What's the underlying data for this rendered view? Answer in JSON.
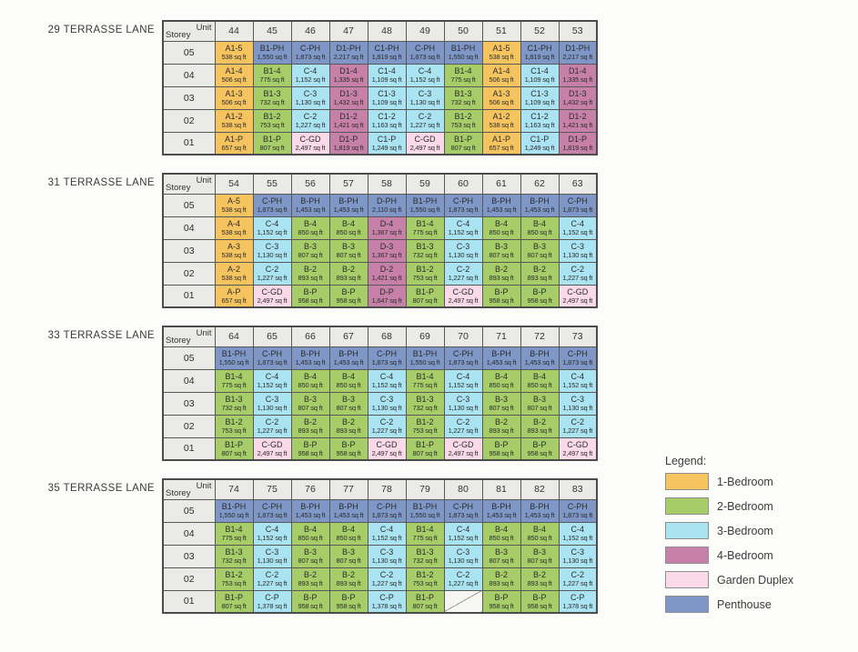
{
  "header_cell": {
    "unit_label": "Unit",
    "storey_label": "Storey"
  },
  "storeys": [
    "05",
    "04",
    "03",
    "02",
    "01"
  ],
  "colors": {
    "1br": "#F5C45F",
    "2br": "#A6CD68",
    "3br": "#AAE4F2",
    "4br": "#C780A7",
    "gd": "#FAD9E8",
    "ph": "#7E97C6",
    "header_bg": "#EAEAE7",
    "border": "#4C4C4C",
    "page_bg": "#FCFCFA"
  },
  "legend": {
    "title": "Legend:",
    "items": [
      {
        "label": "1-Bedroom",
        "key": "1br"
      },
      {
        "label": "2-Bedroom",
        "key": "2br"
      },
      {
        "label": "3-Bedroom",
        "key": "3br"
      },
      {
        "label": "4-Bedroom",
        "key": "4br"
      },
      {
        "label": "Garden Duplex",
        "key": "gd"
      },
      {
        "label": "Penthouse",
        "key": "ph"
      }
    ]
  },
  "buildings": [
    {
      "name": "29 TERRASSE LANE",
      "units": [
        "44",
        "45",
        "46",
        "47",
        "48",
        "49",
        "50",
        "51",
        "52",
        "53"
      ],
      "rows": [
        [
          [
            "A1-5",
            "538 sq ft"
          ],
          [
            "B1-PH",
            "1,550 sq ft"
          ],
          [
            "C-PH",
            "1,873 sq ft"
          ],
          [
            "D1-PH",
            "2,217 sq ft"
          ],
          [
            "C1-PH",
            "1,819 sq ft"
          ],
          [
            "C-PH",
            "1,873 sq ft"
          ],
          [
            "B1-PH",
            "1,550 sq ft"
          ],
          [
            "A1-5",
            "538 sq ft"
          ],
          [
            "C1-PH",
            "1,819 sq ft"
          ],
          [
            "D1-PH",
            "2,217 sq ft"
          ]
        ],
        [
          [
            "A1-4",
            "506 sq ft"
          ],
          [
            "B1-4",
            "775 sq ft"
          ],
          [
            "C-4",
            "1,152 sq ft"
          ],
          [
            "D1-4",
            "1,335 sq ft"
          ],
          [
            "C1-4",
            "1,109 sq ft"
          ],
          [
            "C-4",
            "1,152 sq ft"
          ],
          [
            "B1-4",
            "775 sq ft"
          ],
          [
            "A1-4",
            "506 sq ft"
          ],
          [
            "C1-4",
            "1,109 sq ft"
          ],
          [
            "D1-4",
            "1,335 sq ft"
          ]
        ],
        [
          [
            "A1-3",
            "506 sq ft"
          ],
          [
            "B1-3",
            "732 sq ft"
          ],
          [
            "C-3",
            "1,130 sq ft"
          ],
          [
            "D1-3",
            "1,432 sq ft"
          ],
          [
            "C1-3",
            "1,109 sq ft"
          ],
          [
            "C-3",
            "1,130 sq ft"
          ],
          [
            "B1-3",
            "732 sq ft"
          ],
          [
            "A1-3",
            "506 sq ft"
          ],
          [
            "C1-3",
            "1,109 sq ft"
          ],
          [
            "D1-3",
            "1,432 sq ft"
          ]
        ],
        [
          [
            "A1-2",
            "538 sq ft"
          ],
          [
            "B1-2",
            "753 sq ft"
          ],
          [
            "C-2",
            "1,227 sq ft"
          ],
          [
            "D1-2",
            "1,421 sq ft"
          ],
          [
            "C1-2",
            "1,163 sq ft"
          ],
          [
            "C-2",
            "1,227 sq ft"
          ],
          [
            "B1-2",
            "753 sq ft"
          ],
          [
            "A1-2",
            "538 sq ft"
          ],
          [
            "C1-2",
            "1,163 sq ft"
          ],
          [
            "D1-2",
            "1,421 sq ft"
          ]
        ],
        [
          [
            "A1-P",
            "657 sq ft"
          ],
          [
            "B1-P",
            "807 sq ft"
          ],
          [
            "C-GD",
            "2,497 sq ft"
          ],
          [
            "D1-P",
            "1,819 sq ft"
          ],
          [
            "C1-P",
            "1,249 sq ft"
          ],
          [
            "C-GD",
            "2,497 sq ft"
          ],
          [
            "B1-P",
            "807 sq ft"
          ],
          [
            "A1-P",
            "657 sq ft"
          ],
          [
            "C1-P",
            "1,249 sq ft"
          ],
          [
            "D1-P",
            "1,819 sq ft"
          ]
        ]
      ]
    },
    {
      "name": "31 TERRASSE LANE",
      "units": [
        "54",
        "55",
        "56",
        "57",
        "58",
        "59",
        "60",
        "61",
        "62",
        "63"
      ],
      "rows": [
        [
          [
            "A-5",
            "538 sq ft"
          ],
          [
            "C-PH",
            "1,873 sq ft"
          ],
          [
            "B-PH",
            "1,453 sq ft"
          ],
          [
            "B-PH",
            "1,453 sq ft"
          ],
          [
            "D-PH",
            "2,110 sq ft"
          ],
          [
            "B1-PH",
            "1,550 sq ft"
          ],
          [
            "C-PH",
            "1,873 sq ft"
          ],
          [
            "B-PH",
            "1,453 sq ft"
          ],
          [
            "B-PH",
            "1,453 sq ft"
          ],
          [
            "C-PH",
            "1,873 sq ft"
          ]
        ],
        [
          [
            "A-4",
            "538 sq ft"
          ],
          [
            "C-4",
            "1,152 sq ft"
          ],
          [
            "B-4",
            "850 sq ft"
          ],
          [
            "B-4",
            "850 sq ft"
          ],
          [
            "D-4",
            "1,367 sq ft"
          ],
          [
            "B1-4",
            "775 sq ft"
          ],
          [
            "C-4",
            "1,152 sq ft"
          ],
          [
            "B-4",
            "850 sq ft"
          ],
          [
            "B-4",
            "850 sq ft"
          ],
          [
            "C-4",
            "1,152 sq ft"
          ]
        ],
        [
          [
            "A-3",
            "538 sq ft"
          ],
          [
            "C-3",
            "1,130 sq ft"
          ],
          [
            "B-3",
            "807 sq ft"
          ],
          [
            "B-3",
            "807 sq ft"
          ],
          [
            "D-3",
            "1,367 sq ft"
          ],
          [
            "B1-3",
            "732 sq ft"
          ],
          [
            "C-3",
            "1,130 sq ft"
          ],
          [
            "B-3",
            "807 sq ft"
          ],
          [
            "B-3",
            "807 sq ft"
          ],
          [
            "C-3",
            "1,130 sq ft"
          ]
        ],
        [
          [
            "A-2",
            "538 sq ft"
          ],
          [
            "C-2",
            "1,227 sq ft"
          ],
          [
            "B-2",
            "893 sq ft"
          ],
          [
            "B-2",
            "893 sq ft"
          ],
          [
            "D-2",
            "1,421 sq ft"
          ],
          [
            "B1-2",
            "753 sq ft"
          ],
          [
            "C-2",
            "1,227 sq ft"
          ],
          [
            "B-2",
            "893 sq ft"
          ],
          [
            "B-2",
            "893 sq ft"
          ],
          [
            "C-2",
            "1,227 sq ft"
          ]
        ],
        [
          [
            "A-P",
            "657 sq ft"
          ],
          [
            "C-GD",
            "2,497 sq ft"
          ],
          [
            "B-P",
            "958 sq ft"
          ],
          [
            "B-P",
            "958 sq ft"
          ],
          [
            "D-P",
            "1,647 sq ft"
          ],
          [
            "B1-P",
            "807 sq ft"
          ],
          [
            "C-GD",
            "2,497 sq ft"
          ],
          [
            "B-P",
            "958 sq ft"
          ],
          [
            "B-P",
            "958 sq ft"
          ],
          [
            "C-GD",
            "2,497 sq ft"
          ]
        ]
      ]
    },
    {
      "name": "33 TERRASSE LANE",
      "units": [
        "64",
        "65",
        "66",
        "67",
        "68",
        "69",
        "70",
        "71",
        "72",
        "73"
      ],
      "rows": [
        [
          [
            "B1-PH",
            "1,550 sq ft"
          ],
          [
            "C-PH",
            "1,873 sq ft"
          ],
          [
            "B-PH",
            "1,453 sq ft"
          ],
          [
            "B-PH",
            "1,453 sq ft"
          ],
          [
            "C-PH",
            "1,873 sq ft"
          ],
          [
            "B1-PH",
            "1,550 sq ft"
          ],
          [
            "C-PH",
            "1,873 sq ft"
          ],
          [
            "B-PH",
            "1,453 sq ft"
          ],
          [
            "B-PH",
            "1,453 sq ft"
          ],
          [
            "C-PH",
            "1,873 sq ft"
          ]
        ],
        [
          [
            "B1-4",
            "775 sq ft"
          ],
          [
            "C-4",
            "1,152 sq ft"
          ],
          [
            "B-4",
            "850 sq ft"
          ],
          [
            "B-4",
            "850 sq ft"
          ],
          [
            "C-4",
            "1,152 sq ft"
          ],
          [
            "B1-4",
            "775 sq ft"
          ],
          [
            "C-4",
            "1,152 sq ft"
          ],
          [
            "B-4",
            "850 sq ft"
          ],
          [
            "B-4",
            "850 sq ft"
          ],
          [
            "C-4",
            "1,152 sq ft"
          ]
        ],
        [
          [
            "B1-3",
            "732 sq ft"
          ],
          [
            "C-3",
            "1,130 sq ft"
          ],
          [
            "B-3",
            "807 sq ft"
          ],
          [
            "B-3",
            "807 sq ft"
          ],
          [
            "C-3",
            "1,130 sq ft"
          ],
          [
            "B1-3",
            "732 sq ft"
          ],
          [
            "C-3",
            "1,130 sq ft"
          ],
          [
            "B-3",
            "807 sq ft"
          ],
          [
            "B-3",
            "807 sq ft"
          ],
          [
            "C-3",
            "1,130 sq ft"
          ]
        ],
        [
          [
            "B1-2",
            "753 sq ft"
          ],
          [
            "C-2",
            "1,227 sq ft"
          ],
          [
            "B-2",
            "893 sq ft"
          ],
          [
            "B-2",
            "893 sq ft"
          ],
          [
            "C-2",
            "1,227 sq ft"
          ],
          [
            "B1-2",
            "753 sq ft"
          ],
          [
            "C-2",
            "1,227 sq ft"
          ],
          [
            "B-2",
            "893 sq ft"
          ],
          [
            "B-2",
            "893 sq ft"
          ],
          [
            "C-2",
            "1,227 sq ft"
          ]
        ],
        [
          [
            "B1-P",
            "807 sq ft"
          ],
          [
            "C-GD",
            "2,497 sq ft"
          ],
          [
            "B-P",
            "958 sq ft"
          ],
          [
            "B-P",
            "958 sq ft"
          ],
          [
            "C-GD",
            "2,497 sq ft"
          ],
          [
            "B1-P",
            "807 sq ft"
          ],
          [
            "C-GD",
            "2,497 sq ft"
          ],
          [
            "B-P",
            "958 sq ft"
          ],
          [
            "B-P",
            "958 sq ft"
          ],
          [
            "C-GD",
            "2,497 sq ft"
          ]
        ]
      ]
    },
    {
      "name": "35 TERRASSE LANE",
      "units": [
        "74",
        "75",
        "76",
        "77",
        "78",
        "79",
        "80",
        "81",
        "82",
        "83"
      ],
      "rows": [
        [
          [
            "B1-PH",
            "1,550 sq ft"
          ],
          [
            "C-PH",
            "1,873 sq ft"
          ],
          [
            "B-PH",
            "1,453 sq ft"
          ],
          [
            "B-PH",
            "1,453 sq ft"
          ],
          [
            "C-PH",
            "1,873 sq ft"
          ],
          [
            "B1-PH",
            "1,550 sq ft"
          ],
          [
            "C-PH",
            "1,873 sq ft"
          ],
          [
            "B-PH",
            "1,453 sq ft"
          ],
          [
            "B-PH",
            "1,453 sq ft"
          ],
          [
            "C-PH",
            "1,873 sq ft"
          ]
        ],
        [
          [
            "B1-4",
            "775 sq ft"
          ],
          [
            "C-4",
            "1,152 sq ft"
          ],
          [
            "B-4",
            "850 sq ft"
          ],
          [
            "B-4",
            "850 sq ft"
          ],
          [
            "C-4",
            "1,152 sq ft"
          ],
          [
            "B1-4",
            "775 sq ft"
          ],
          [
            "C-4",
            "1,152 sq ft"
          ],
          [
            "B-4",
            "850 sq ft"
          ],
          [
            "B-4",
            "850 sq ft"
          ],
          [
            "C-4",
            "1,152 sq ft"
          ]
        ],
        [
          [
            "B1-3",
            "732 sq ft"
          ],
          [
            "C-3",
            "1,130 sq ft"
          ],
          [
            "B-3",
            "807 sq ft"
          ],
          [
            "B-3",
            "807 sq ft"
          ],
          [
            "C-3",
            "1,130 sq ft"
          ],
          [
            "B1-3",
            "732 sq ft"
          ],
          [
            "C-3",
            "1,130 sq ft"
          ],
          [
            "B-3",
            "807 sq ft"
          ],
          [
            "B-3",
            "807 sq ft"
          ],
          [
            "C-3",
            "1,130 sq ft"
          ]
        ],
        [
          [
            "B1-2",
            "753 sq ft"
          ],
          [
            "C-2",
            "1,227 sq ft"
          ],
          [
            "B-2",
            "893 sq ft"
          ],
          [
            "B-2",
            "893 sq ft"
          ],
          [
            "C-2",
            "1,227 sq ft"
          ],
          [
            "B1-2",
            "753 sq ft"
          ],
          [
            "C-2",
            "1,227 sq ft"
          ],
          [
            "B-2",
            "893 sq ft"
          ],
          [
            "B-2",
            "893 sq ft"
          ],
          [
            "C-2",
            "1,227 sq ft"
          ]
        ],
        [
          [
            "B1-P",
            "807 sq ft"
          ],
          [
            "C-P",
            "1,378 sq ft"
          ],
          [
            "B-P",
            "958 sq ft"
          ],
          [
            "B-P",
            "958 sq ft"
          ],
          [
            "C-P",
            "1,378 sq ft"
          ],
          [
            "B1-P",
            "807 sq ft"
          ],
          null,
          [
            "B-P",
            "958 sq ft"
          ],
          [
            "B-P",
            "958 sq ft"
          ],
          [
            "C-P",
            "1,378 sq ft"
          ]
        ]
      ]
    }
  ]
}
